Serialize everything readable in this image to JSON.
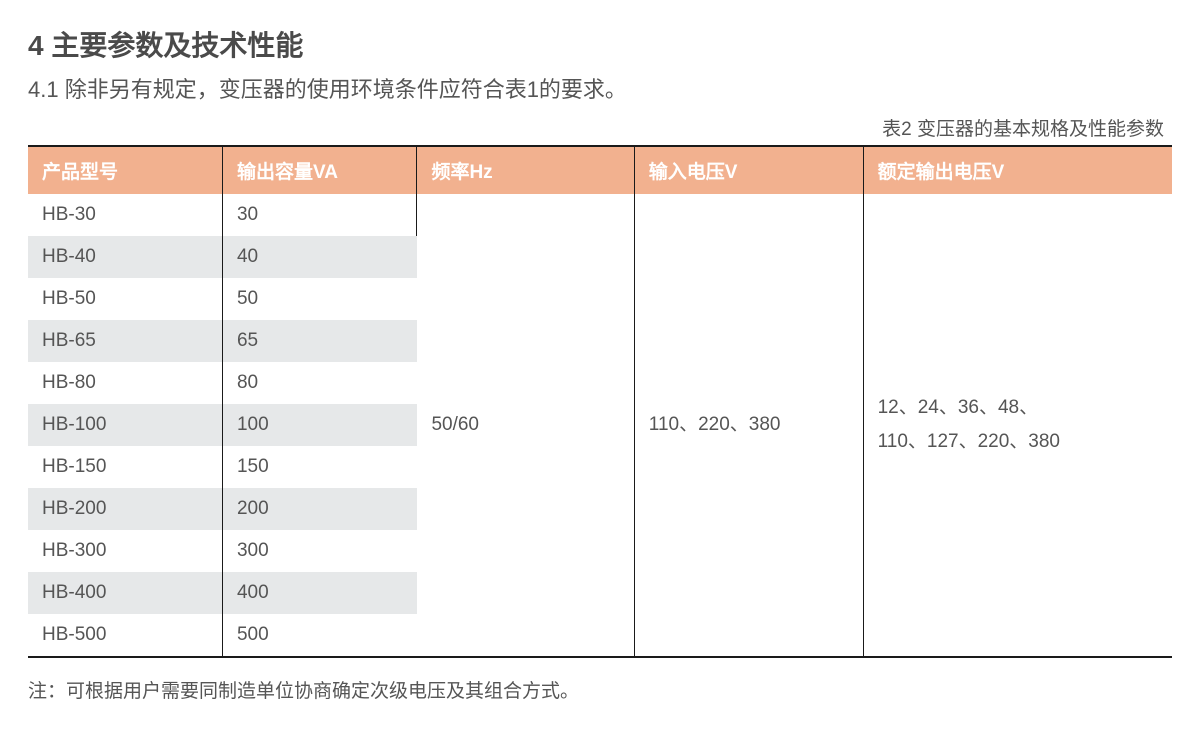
{
  "heading": "4 主要参数及技术性能",
  "subsection": "4.1 除非另有规定，变压器的使用环境条件应符合表1的要求。",
  "table_caption": "表2 变压器的基本规格及性能参数",
  "table": {
    "columns": [
      "产品型号",
      "输出容量VA",
      "频率Hz",
      "输入电压V",
      "额定输出电压V"
    ],
    "header_bg": "#f2b18f",
    "header_color": "#ffffff",
    "stripe_odd": "#ffffff",
    "stripe_even": "#e6e8e9",
    "border_color": "#1a1a1a",
    "rows": [
      {
        "model": "HB-30",
        "capacity": "30"
      },
      {
        "model": "HB-40",
        "capacity": "40"
      },
      {
        "model": "HB-50",
        "capacity": "50"
      },
      {
        "model": "HB-65",
        "capacity": "65"
      },
      {
        "model": "HB-80",
        "capacity": "80"
      },
      {
        "model": "HB-100",
        "capacity": "100"
      },
      {
        "model": "HB-150",
        "capacity": "150"
      },
      {
        "model": "HB-200",
        "capacity": "200"
      },
      {
        "model": "HB-300",
        "capacity": "300"
      },
      {
        "model": "HB-400",
        "capacity": "400"
      },
      {
        "model": "HB-500",
        "capacity": "500"
      }
    ],
    "frequency": "50/60",
    "input_voltage": "110、220、380",
    "output_voltage_line1": "12、24、36、48、",
    "output_voltage_line2": "110、127、220、380"
  },
  "footnote": "注：可根据用户需要同制造单位协商确定次级电压及其组合方式。"
}
